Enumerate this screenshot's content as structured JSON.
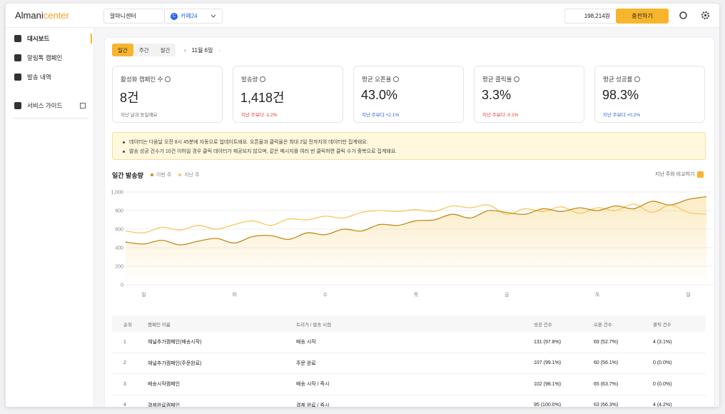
{
  "header": {
    "logo": "Almani",
    "logo_accent": "center",
    "store": "알마니센터",
    "platform_icon": "C",
    "platform": "카페24",
    "balance": "198,214원",
    "charge_button": "충전하기"
  },
  "sidebar": {
    "menu": [
      "대시보드",
      "알림톡 캠페인",
      "발송 내역"
    ],
    "guide": "서비스 가이드"
  },
  "filters": {
    "tabs": [
      "일간",
      "주간",
      "월간"
    ],
    "date": "11월 6일"
  },
  "stats": [
    {
      "label": "활성화 캠페인 수",
      "value": "8건",
      "note": "지난 날과 동일해요"
    },
    {
      "label": "발송량",
      "value": "1,418건",
      "note": "지난 주보다 -1.2%"
    },
    {
      "label": "평균 오픈율",
      "value": "43.0%",
      "note": "지난 주보다 +2.1%"
    },
    {
      "label": "평균 클릭율",
      "value": "3.3%",
      "note": "지난 주보다 -0.1%"
    },
    {
      "label": "평균 성공률",
      "value": "98.3%",
      "note": "지난 주보다 +0.2%"
    }
  ],
  "notice": [
    "데이터는 다음날 오전 8시 45분에 자동으로 업데이트돼요. 오픈율과 클릭율은 최대 2일 전까지의 데이터만 집계돼요.",
    "발송 성공 건수가 10건 이하일 경우 클릭 데이터가 제공되지 않으며, 같은 메시지를 여러 번 클릭하면 클릭 수가 중복으로 집계돼요."
  ],
  "chart_toggle": "지난 주와 비교하기",
  "chart_data": {
    "type": "line",
    "title": "일간 발송량",
    "categories": [
      null,
      "일",
      null,
      null,
      null,
      null,
      "화",
      null,
      null,
      null,
      null,
      "수",
      null,
      null,
      null,
      null,
      "목",
      null,
      null,
      null,
      null,
      "금",
      null,
      null,
      null,
      null,
      "토",
      null,
      null,
      null,
      null,
      "일",
      null
    ],
    "series": [
      {
        "name": "이번 주",
        "color": "#c18a1a",
        "values": [
          460,
          440,
          480,
          430,
          470,
          500,
          450,
          520,
          530,
          490,
          560,
          540,
          600,
          580,
          650,
          640,
          690,
          700,
          760,
          720,
          800,
          780,
          760,
          820,
          790,
          830,
          800,
          850,
          820,
          900,
          860,
          920,
          950
        ]
      },
      {
        "name": "지난 주",
        "color": "#f6c85a",
        "values": [
          580,
          560,
          620,
          590,
          640,
          600,
          650,
          690,
          640,
          710,
          700,
          740,
          720,
          780,
          800,
          790,
          810,
          790,
          850,
          830,
          860,
          760,
          820,
          790,
          840,
          770,
          830,
          800,
          870,
          780,
          860,
          780,
          760
        ]
      }
    ],
    "ylim": [
      0,
      1000
    ],
    "yticks": [
      0,
      200,
      400,
      600,
      800,
      {
        "value": 1000,
        "label": "1,000"
      }
    ],
    "grid": true
  },
  "table": {
    "columns": [
      "순위",
      "캠페인 이름",
      "트리거 / 발송 시점",
      "성공 건수",
      "오픈 건수",
      "클릭 건수"
    ],
    "rows": [
      [
        "1",
        "채널추가캠페인(배송시작)",
        "배송 시작",
        "131 (97.8%)",
        "69 (52.7%)",
        "4 (3.1%)"
      ],
      [
        "2",
        "채널추가캠페인(주문완료)",
        "주문 완료",
        "107 (99.1%)",
        "60 (56.1%)",
        "0 (0.0%)"
      ],
      [
        "3",
        "배송시작캠페인",
        "배송 시작 / 즉시",
        "102 (98.1%)",
        "65 (63.7%)",
        "0 (0.0%)"
      ],
      [
        "4",
        "결제완료캠페인",
        "결제 완료 / 즉시",
        "95 (100.0%)",
        "63 (66.3%)",
        "4 (4.2%)"
      ]
    ]
  }
}
